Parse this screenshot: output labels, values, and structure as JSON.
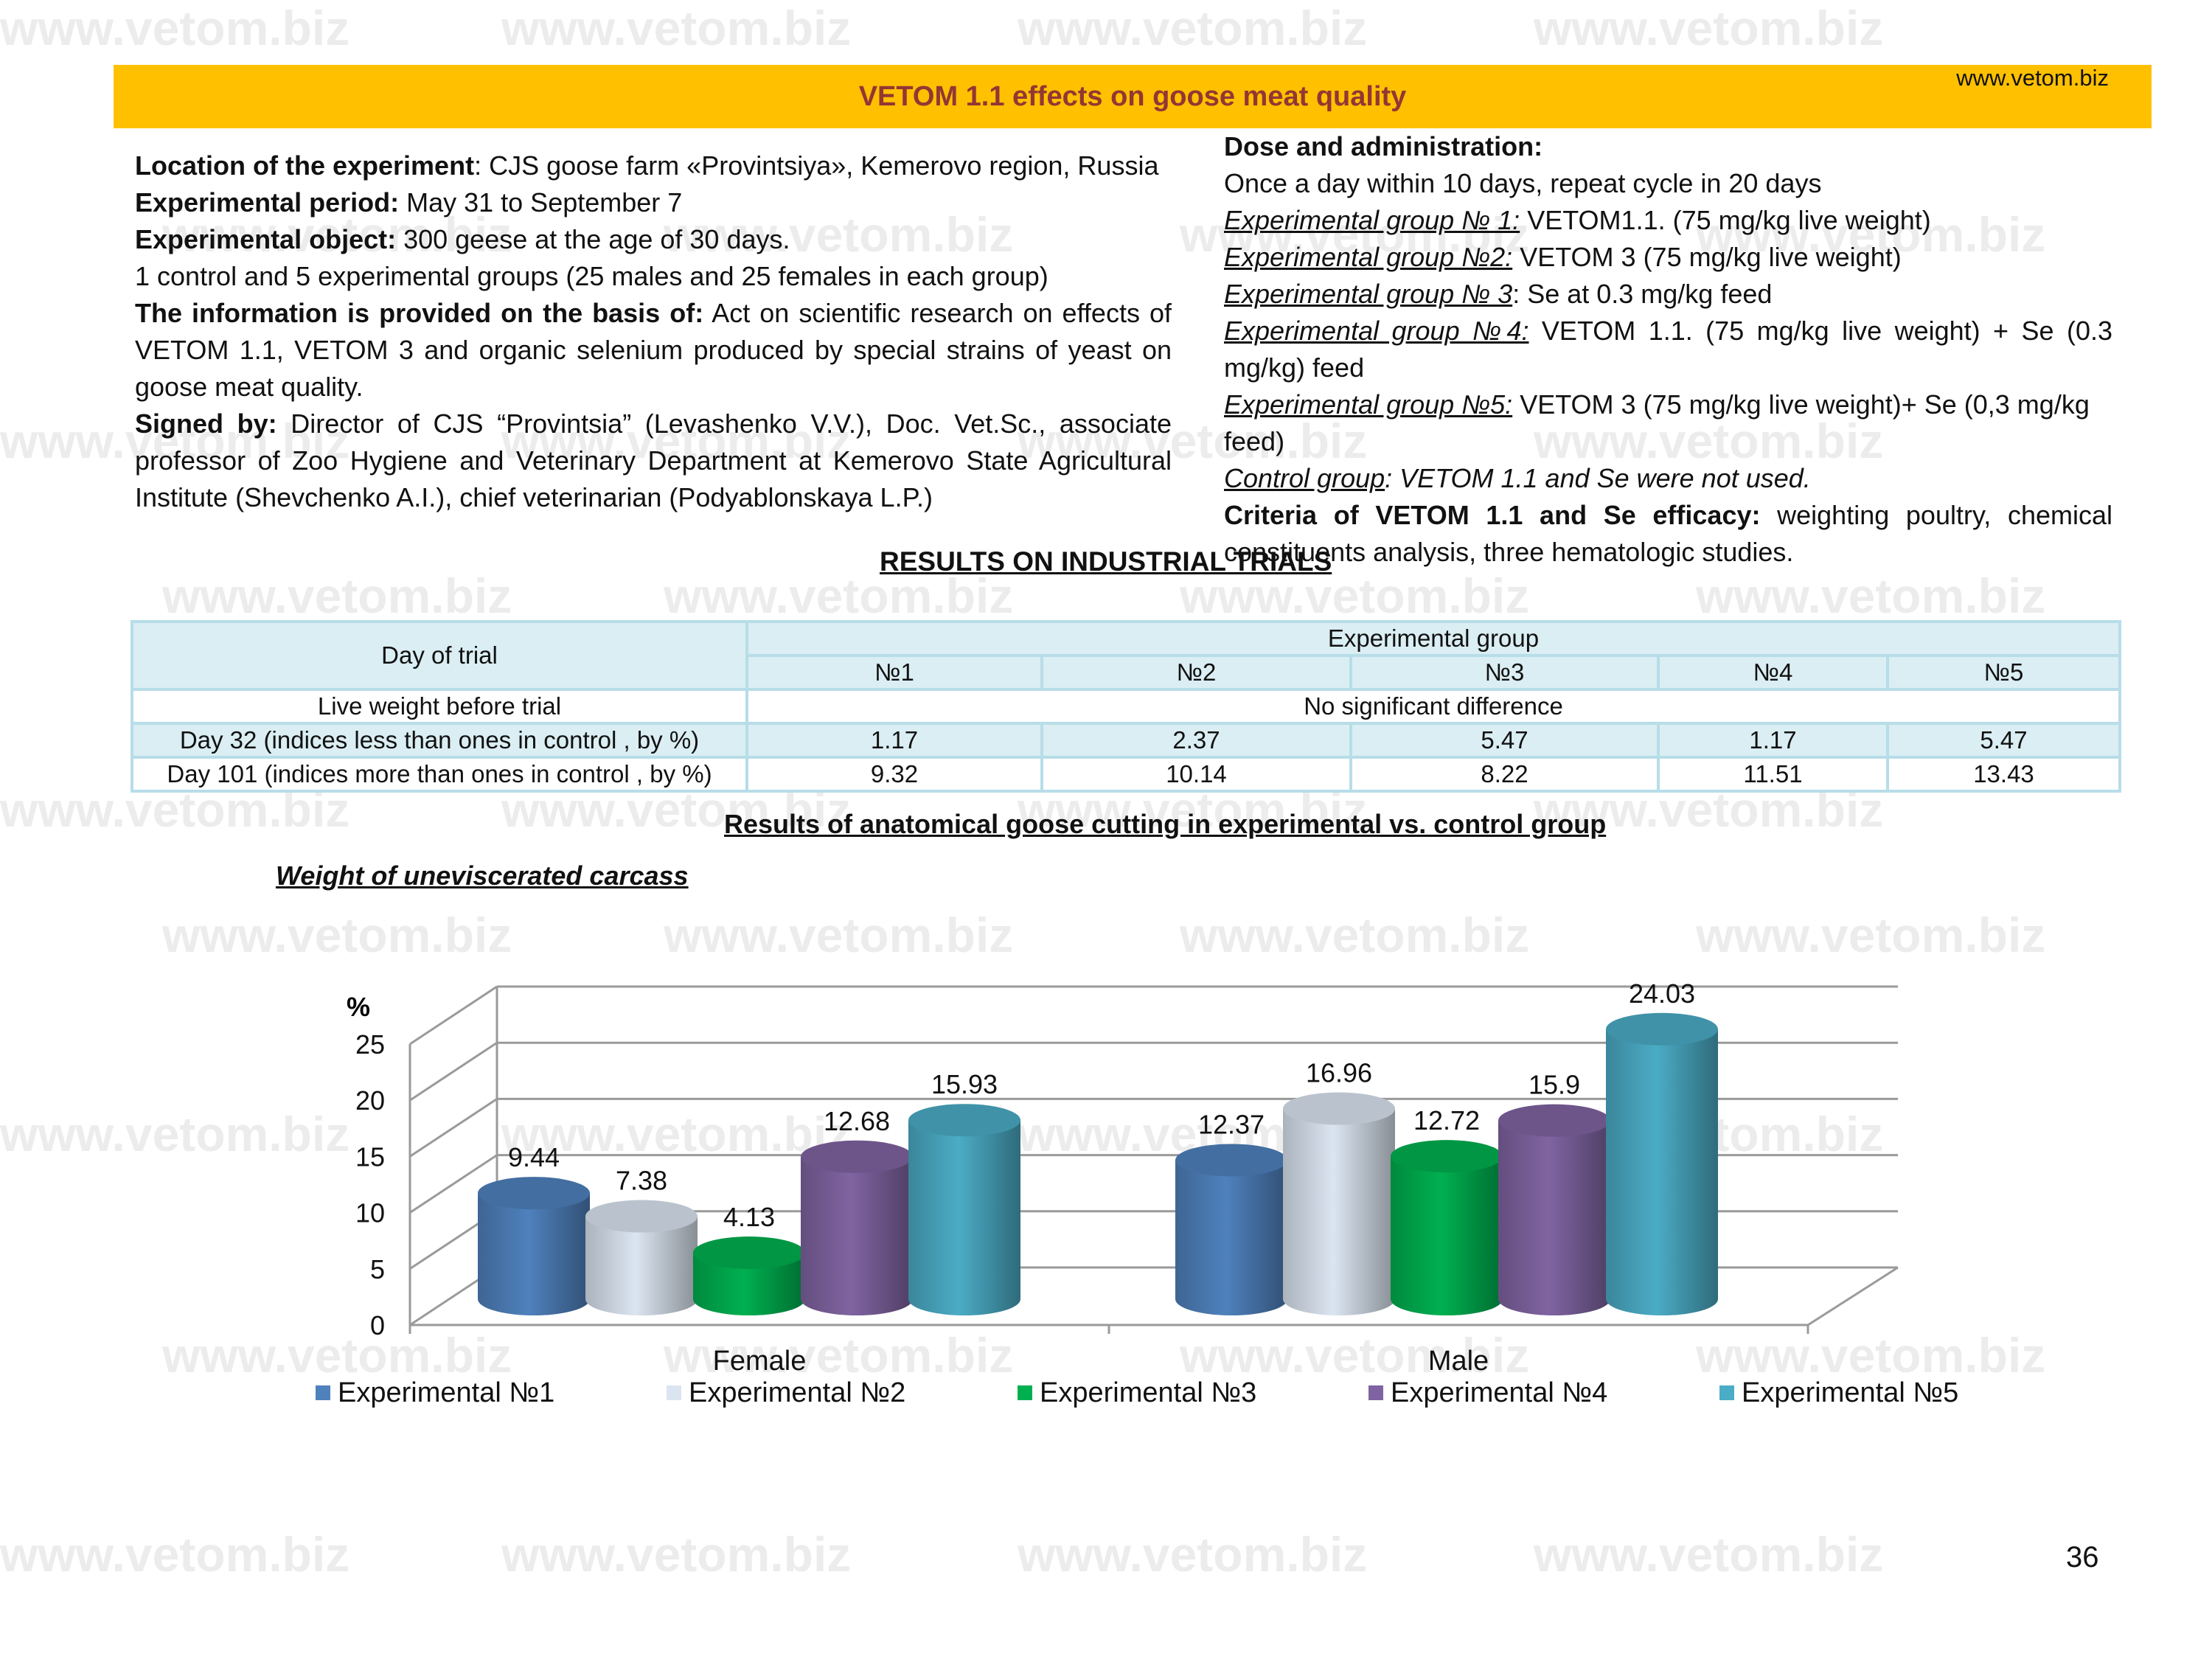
{
  "watermark": "www.vetom.biz",
  "header": {
    "title": "VETOM 1.1  effects on goose meat  quality",
    "url": "www.vetom.biz"
  },
  "left": {
    "location_label": "Location of the experiment",
    "location_value": ": CJS goose farm «Provintsiya», Kemerovo region, Russia",
    "period_label": "Experimental period:",
    "period_value": " May 31 to September 7",
    "object_label": "Experimental object:",
    "object_value": " 300 geese at the age of 30 days.",
    "groups_text": "1 control and  5 experimental groups (25 males and 25 females in each  group)",
    "basis_label": "The information is provided on the basis of:",
    "basis_value": " Act on scientific research on effects of VETOM 1.1, VETOM 3 and organic selenium produced by special strains of yeast on goose meat quality.",
    "signed_label": "Signed by:",
    "signed_value": " Director of CJS “Provintsia” (Levashenko V.V.), Doc. Vet.Sc., associate professor  of Zoo Hygiene and Veterinary Department at Kemerovo State Agricultural Institute (Shevchenko A.I.), chief veterinarian (Podyablonskaya L.P.)"
  },
  "right": {
    "dose_label": "Dose and administration:",
    "dose_text": "Once a day within 10 days, repeat cycle in 20 days",
    "groups": [
      {
        "label": "Experimental group № 1:",
        "value": " VETOM1.1. (75 mg/kg live weight)"
      },
      {
        "label": "Experimental group №2:",
        "value": " VETOM 3 (75 mg/kg live weight)"
      },
      {
        "label": "Experimental group № 3",
        "value": ": Se at 0.3 mg/kg feed"
      },
      {
        "label": "Experimental group №4:",
        "value": " VETOM 1.1. (75 mg/kg live weight) + Se (0.3 mg/kg) feed"
      },
      {
        "label": "Experimental group №5:",
        "value": " VETOM 3 (75 mg/kg live weight)+ Se (0,3 mg/kg feed)"
      }
    ],
    "control_label": "Control group",
    "control_value": ": VETOM 1.1  and Se were not used.",
    "criteria_label": "Criteria of VETOM 1.1  and Se efficacy:",
    "criteria_value": " weighting poultry, chemical constituents  analysis, three hematologic studies."
  },
  "results_title": "RESULTS ON INDUSTRIAL TRIALS",
  "table": {
    "day_header": "Day of trial",
    "group_header": "Experimental group",
    "group_cols": [
      "№1",
      "№2",
      "№3",
      "№4",
      "№5"
    ],
    "live_weight_label": "Live weight before trial",
    "live_weight_value": "No significant difference",
    "rows": [
      {
        "label": "Day 32 (indices less than ones in control , by %)",
        "values": [
          "1.17",
          "2.37",
          "5.47",
          "1.17",
          "5.47"
        ]
      },
      {
        "label": "Day 101 (indices more than ones in control , by %)",
        "values": [
          "9.32",
          "10.14",
          "8.22",
          "11.51",
          "13.43"
        ]
      }
    ]
  },
  "anatomical_title": "Results of anatomical  goose cutting  in experimental  vs. control group",
  "chart_title": "Weight of uneviscerated carcass",
  "chart_data": {
    "type": "bar",
    "title": "Weight of uneviscerated carcass",
    "ylabel": "%",
    "ylim": [
      0,
      25
    ],
    "yticks": [
      "0",
      "5",
      "10",
      "15",
      "20",
      "25"
    ],
    "categories": [
      "Female",
      "Male"
    ],
    "series": [
      {
        "name": "Experimental №1",
        "values": [
          9.44,
          12.37
        ],
        "color": "#4f81bd"
      },
      {
        "name": "Experimental №2",
        "values": [
          7.38,
          16.96
        ],
        "color": "#dbe5f1"
      },
      {
        "name": "Experimental №3",
        "values": [
          4.13,
          12.72
        ],
        "color": "#00b050"
      },
      {
        "name": "Experimental №4",
        "values": [
          12.68,
          15.9
        ],
        "color": "#8064a2"
      },
      {
        "name": "Experimental №5",
        "values": [
          15.93,
          24.03
        ],
        "color": "#4bacc6"
      }
    ],
    "grid": true,
    "legend": "bottom"
  },
  "page_number": "36"
}
